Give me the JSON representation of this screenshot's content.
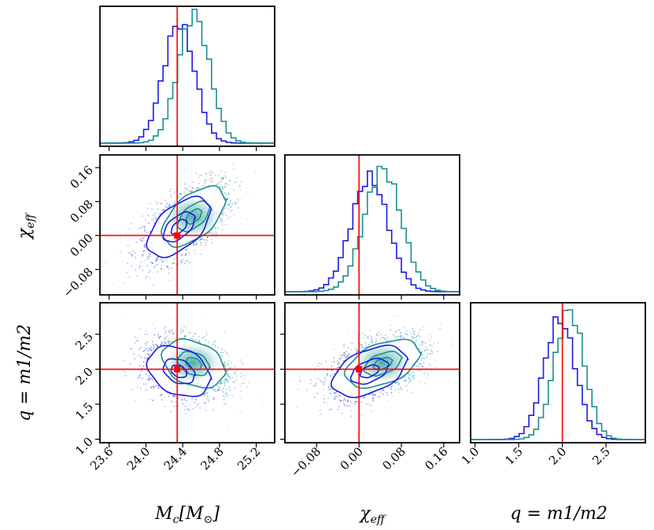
{
  "chart_data": {
    "type": "corner",
    "parameters": [
      {
        "name": "Mc",
        "label": "M_c[M_⊙]",
        "label_main": "M",
        "label_sub": "c",
        "label_tail": "[M",
        "label_tail_sub": "⊙",
        "label_close": "]",
        "range": [
          23.5,
          25.4
        ],
        "ticks": [
          "23.6",
          "24.0",
          "24.4",
          "24.8",
          "25.2"
        ],
        "tick_values": [
          23.6,
          24.0,
          24.4,
          24.8,
          25.2
        ],
        "truth": 24.34
      },
      {
        "name": "chi_eff",
        "label": "χ_eff",
        "label_main": "χ",
        "label_sub": "eff",
        "range": [
          -0.14,
          0.19
        ],
        "ticks": [
          "−0.08",
          "0.00",
          "0.08",
          "0.16"
        ],
        "tick_values": [
          -0.08,
          0.0,
          0.08,
          0.16
        ],
        "truth": 0.0
      },
      {
        "name": "q",
        "label": "q = m1/m2",
        "range": [
          0.95,
          2.95
        ],
        "ticks": [
          "1.0",
          "1.5",
          "2.0",
          "2.5"
        ],
        "tick_values": [
          1.0,
          1.5,
          2.0,
          2.5
        ],
        "truth": 2.0
      }
    ],
    "series": [
      {
        "color": "#1a1ae6",
        "mean": [
          24.36,
          0.02,
          1.97
        ],
        "sd": [
          0.17,
          0.035,
          0.18
        ],
        "rho": [
          0.55,
          -0.3,
          0.45
        ]
      },
      {
        "color": "#1a8f8f",
        "mean": [
          24.52,
          0.045,
          2.08
        ],
        "sd": [
          0.17,
          0.035,
          0.17
        ],
        "rho": [
          0.55,
          -0.3,
          0.45
        ]
      }
    ],
    "truth_color": "#ff0000",
    "grid": false
  }
}
